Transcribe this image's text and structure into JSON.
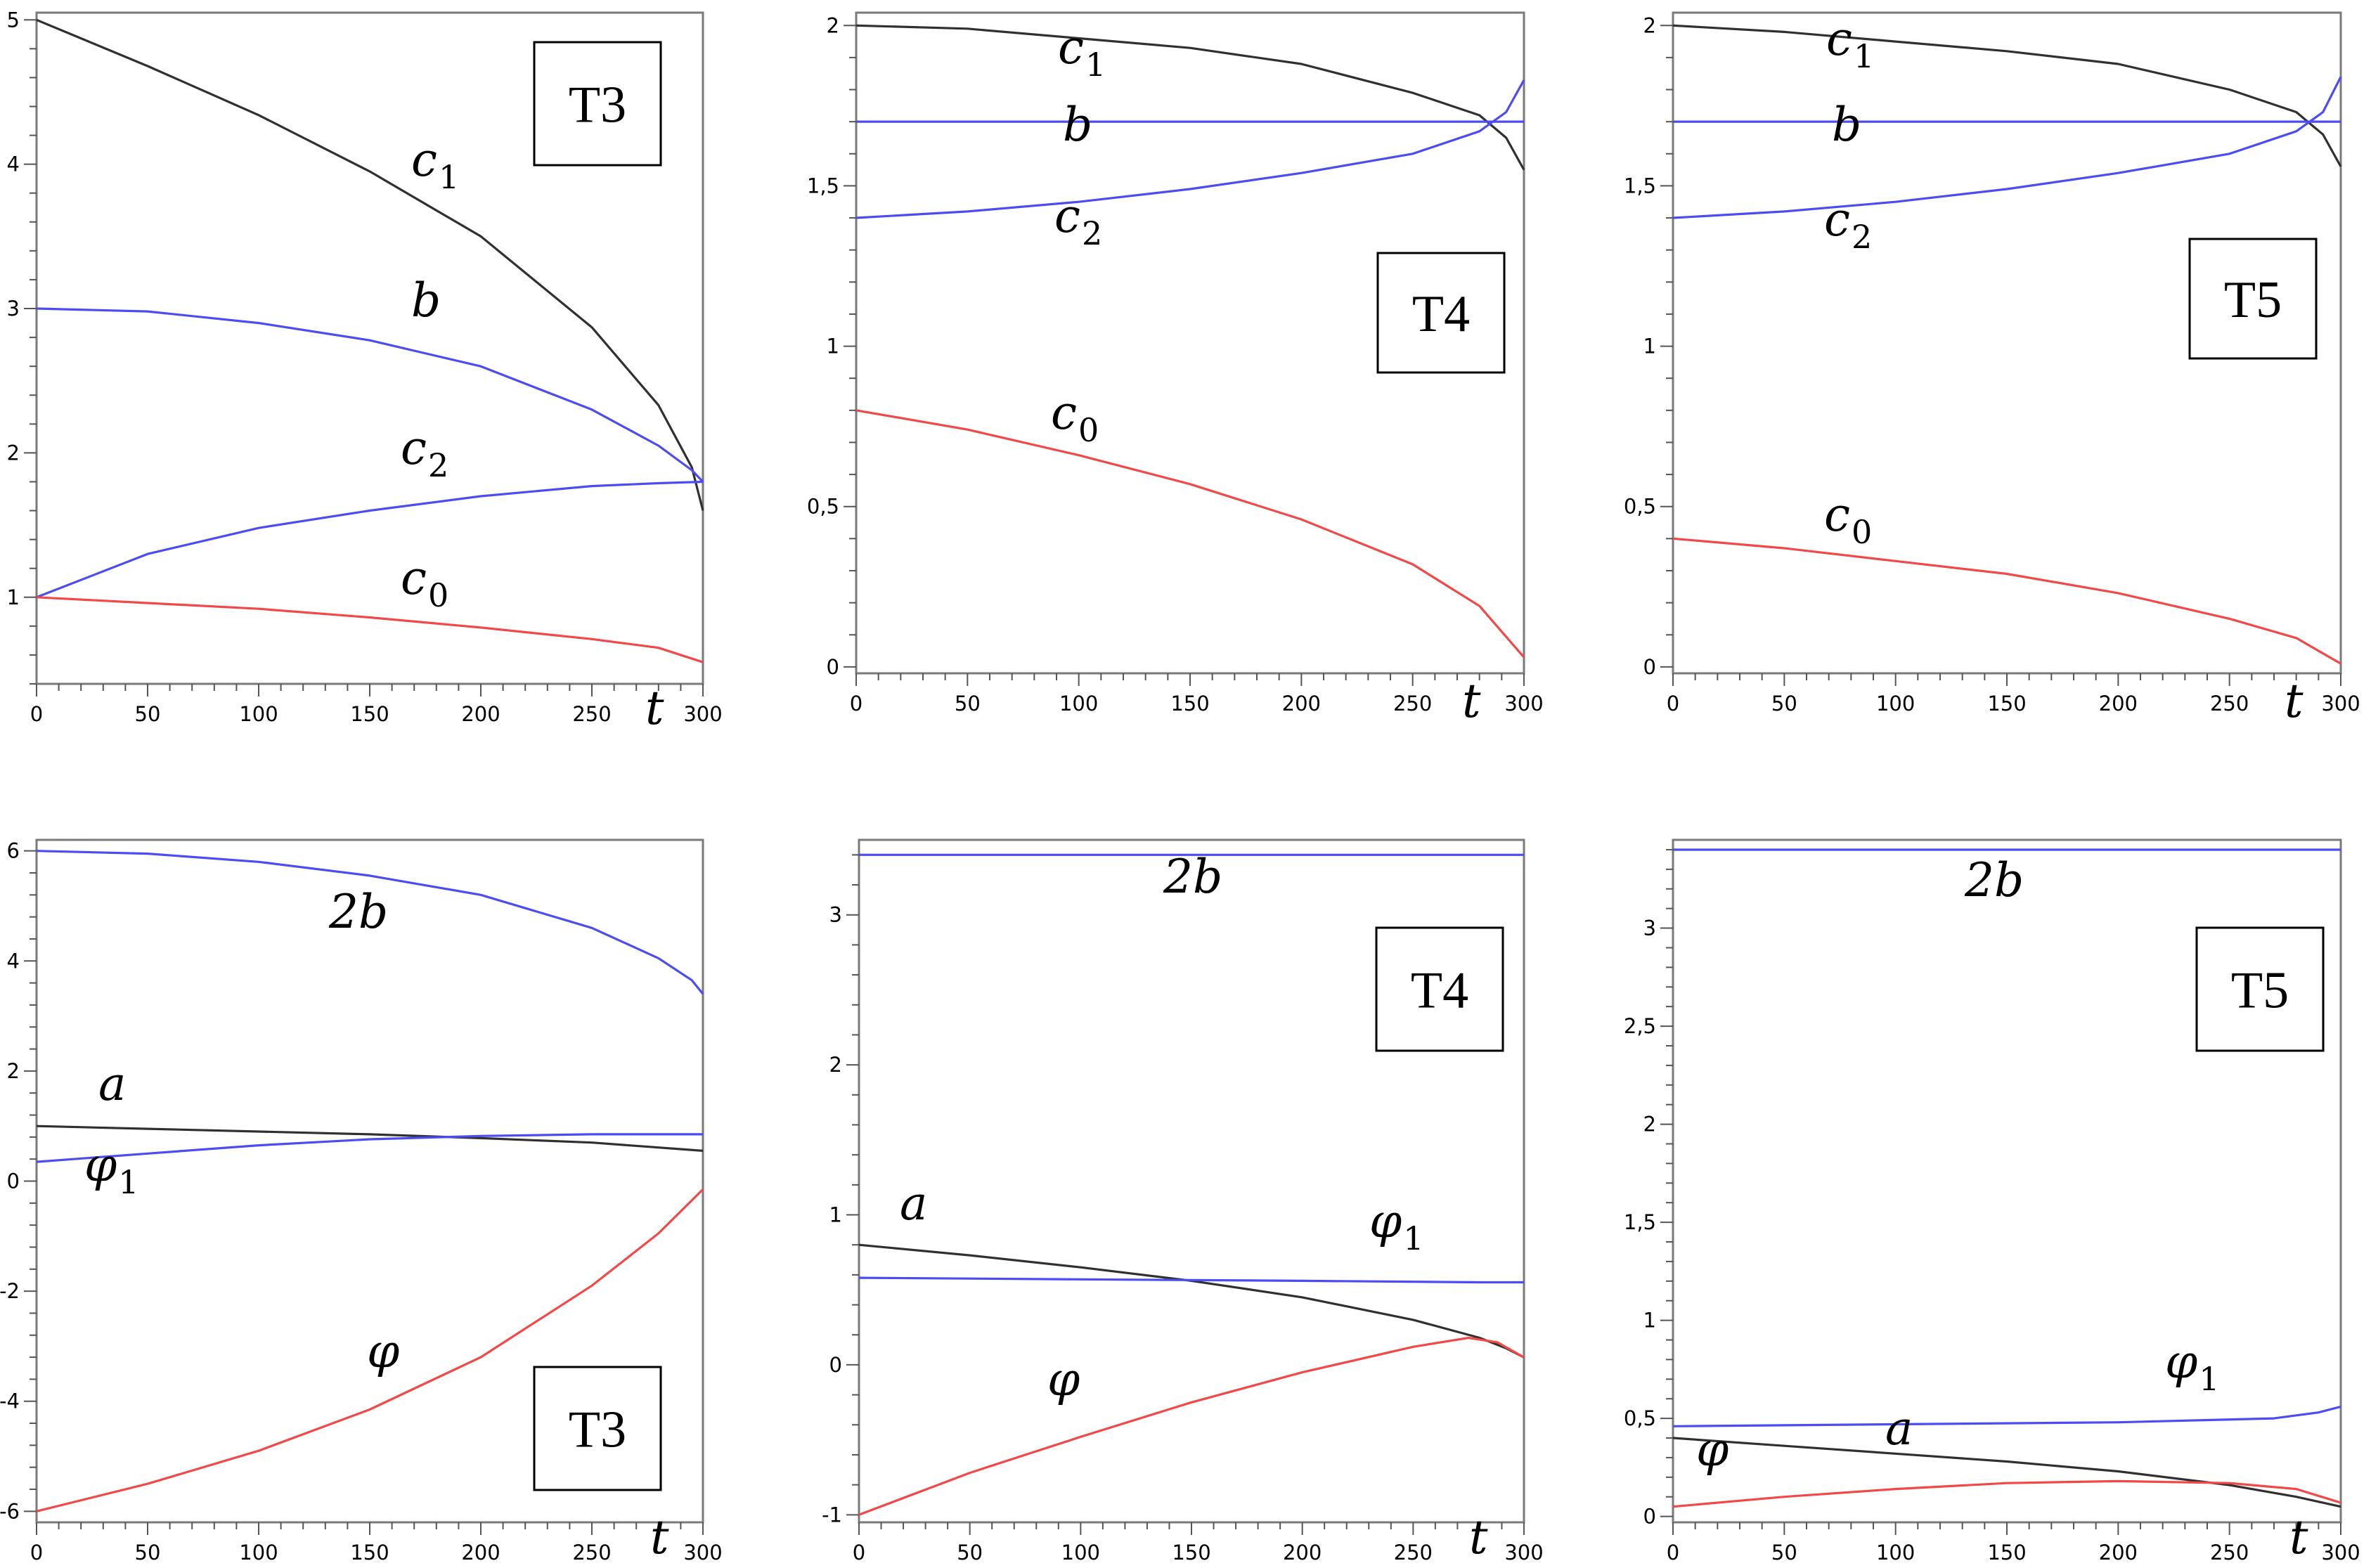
{
  "colors": {
    "black": "#303030",
    "blue": "#4c4cf2",
    "red": "#f24848"
  },
  "chart_data": [
    {
      "type": "line",
      "tag": "T3",
      "xlim": [
        0,
        300
      ],
      "ylim": [
        0.4,
        5.05
      ],
      "xticks": [
        "0",
        "50",
        "100",
        "150",
        "200",
        "250",
        "300"
      ],
      "xticks_v": [
        0,
        50,
        100,
        150,
        200,
        250,
        300
      ],
      "yticks": [
        "1",
        "2",
        "3",
        "4",
        "5"
      ],
      "yticks_v": [
        1,
        2,
        3,
        4,
        5
      ],
      "xlabel": "t",
      "series": [
        {
          "label": "c",
          "sub": "1",
          "color": "black",
          "x": [
            0,
            50,
            100,
            150,
            200,
            250,
            280,
            295,
            300
          ],
          "y": [
            5.0,
            4.68,
            4.34,
            3.95,
            3.5,
            2.87,
            2.33,
            1.9,
            1.6
          ]
        },
        {
          "label": "b",
          "sub": "",
          "color": "blue",
          "x": [
            0,
            50,
            100,
            150,
            200,
            250,
            280,
            295,
            300
          ],
          "y": [
            3.0,
            2.98,
            2.9,
            2.78,
            2.6,
            2.3,
            2.05,
            1.88,
            1.8
          ]
        },
        {
          "label": "c",
          "sub": "2",
          "color": "blue",
          "x": [
            0,
            50,
            100,
            150,
            200,
            250,
            280,
            300
          ],
          "y": [
            1.0,
            1.3,
            1.48,
            1.6,
            1.7,
            1.77,
            1.79,
            1.8
          ]
        },
        {
          "label": "c",
          "sub": "0",
          "color": "red",
          "x": [
            0,
            50,
            100,
            150,
            200,
            250,
            280,
            300
          ],
          "y": [
            1.0,
            0.96,
            0.92,
            0.86,
            0.79,
            0.71,
            0.65,
            0.55
          ]
        }
      ]
    },
    {
      "type": "line",
      "tag": "T4",
      "xlim": [
        0,
        300
      ],
      "ylim": [
        -0.02,
        2.04
      ],
      "xticks": [
        "0",
        "50",
        "100",
        "150",
        "200",
        "250",
        "300"
      ],
      "xticks_v": [
        0,
        50,
        100,
        150,
        200,
        250,
        300
      ],
      "yticks": [
        "0",
        "0,5",
        "1",
        "1,5",
        "2"
      ],
      "yticks_v": [
        0,
        0.5,
        1,
        1.5,
        2
      ],
      "xlabel": "t",
      "series": [
        {
          "label": "c",
          "sub": "1",
          "color": "black",
          "x": [
            0,
            50,
            100,
            150,
            200,
            250,
            280,
            292,
            300
          ],
          "y": [
            2.0,
            1.99,
            1.96,
            1.93,
            1.88,
            1.79,
            1.72,
            1.65,
            1.55
          ]
        },
        {
          "label": "b",
          "sub": "",
          "color": "blue",
          "x": [
            0,
            300
          ],
          "y": [
            1.7,
            1.7
          ]
        },
        {
          "label": "c",
          "sub": "2",
          "color": "blue",
          "x": [
            0,
            50,
            100,
            150,
            200,
            250,
            280,
            292,
            300
          ],
          "y": [
            1.4,
            1.42,
            1.45,
            1.49,
            1.54,
            1.6,
            1.67,
            1.73,
            1.83
          ]
        },
        {
          "label": "c",
          "sub": "0",
          "color": "red",
          "x": [
            0,
            50,
            100,
            150,
            200,
            250,
            280,
            300
          ],
          "y": [
            0.8,
            0.74,
            0.66,
            0.57,
            0.46,
            0.32,
            0.19,
            0.03
          ]
        }
      ]
    },
    {
      "type": "line",
      "tag": "T5",
      "xlim": [
        0,
        300
      ],
      "ylim": [
        -0.02,
        2.04
      ],
      "xticks": [
        "0",
        "50",
        "100",
        "150",
        "200",
        "250",
        "300"
      ],
      "xticks_v": [
        0,
        50,
        100,
        150,
        200,
        250,
        300
      ],
      "yticks": [
        "0",
        "0,5",
        "1",
        "1,5",
        "2"
      ],
      "yticks_v": [
        0,
        0.5,
        1,
        1.5,
        2
      ],
      "xlabel": "t",
      "series": [
        {
          "label": "c",
          "sub": "1",
          "color": "black",
          "x": [
            0,
            50,
            100,
            150,
            200,
            250,
            280,
            292,
            300
          ],
          "y": [
            2.0,
            1.98,
            1.95,
            1.92,
            1.88,
            1.8,
            1.73,
            1.66,
            1.56
          ]
        },
        {
          "label": "b",
          "sub": "",
          "color": "blue",
          "x": [
            0,
            300
          ],
          "y": [
            1.7,
            1.7
          ]
        },
        {
          "label": "c",
          "sub": "2",
          "color": "blue",
          "x": [
            0,
            50,
            100,
            150,
            200,
            250,
            280,
            292,
            300
          ],
          "y": [
            1.4,
            1.42,
            1.45,
            1.49,
            1.54,
            1.6,
            1.67,
            1.73,
            1.84
          ]
        },
        {
          "label": "c",
          "sub": "0",
          "color": "red",
          "x": [
            0,
            50,
            100,
            150,
            200,
            250,
            280,
            300
          ],
          "y": [
            0.4,
            0.37,
            0.33,
            0.29,
            0.23,
            0.15,
            0.09,
            0.01
          ]
        }
      ]
    },
    {
      "type": "line",
      "tag": "T3",
      "xlim": [
        0,
        300
      ],
      "ylim": [
        -6.2,
        6.2
      ],
      "xticks": [
        "0",
        "50",
        "100",
        "150",
        "200",
        "250",
        "300"
      ],
      "xticks_v": [
        0,
        50,
        100,
        150,
        200,
        250,
        300
      ],
      "yticks": [
        "-6",
        "-4",
        "-2",
        "0",
        "2",
        "4",
        "6"
      ],
      "yticks_v": [
        -6,
        -4,
        -2,
        0,
        2,
        4,
        6
      ],
      "xlabel": "t",
      "series": [
        {
          "label": "2b",
          "sub": "",
          "color": "blue",
          "x": [
            0,
            50,
            100,
            150,
            200,
            250,
            280,
            295,
            300
          ],
          "y": [
            6.0,
            5.95,
            5.8,
            5.55,
            5.2,
            4.6,
            4.05,
            3.65,
            3.4
          ]
        },
        {
          "label": "a",
          "sub": "",
          "color": "black",
          "x": [
            0,
            50,
            100,
            150,
            200,
            250,
            300
          ],
          "y": [
            1.0,
            0.95,
            0.9,
            0.85,
            0.78,
            0.7,
            0.55
          ]
        },
        {
          "label": "φ",
          "sub": "1",
          "color": "blue",
          "x": [
            0,
            50,
            100,
            150,
            200,
            250,
            300
          ],
          "y": [
            0.35,
            0.5,
            0.65,
            0.76,
            0.82,
            0.85,
            0.85
          ]
        },
        {
          "label": "φ",
          "sub": "",
          "color": "red",
          "x": [
            0,
            50,
            100,
            150,
            200,
            250,
            280,
            300
          ],
          "y": [
            -6.0,
            -5.5,
            -4.9,
            -4.15,
            -3.2,
            -1.9,
            -0.95,
            -0.15
          ]
        }
      ]
    },
    {
      "type": "line",
      "tag": "T4",
      "xlim": [
        0,
        300
      ],
      "ylim": [
        -1.05,
        3.5
      ],
      "xticks": [
        "0",
        "50",
        "100",
        "150",
        "200",
        "250",
        "300"
      ],
      "xticks_v": [
        0,
        50,
        100,
        150,
        200,
        250,
        300
      ],
      "yticks": [
        "-1",
        "0",
        "1",
        "2",
        "3"
      ],
      "yticks_v": [
        -1,
        0,
        1,
        2,
        3
      ],
      "xlabel": "t",
      "series": [
        {
          "label": "2b",
          "sub": "",
          "color": "blue",
          "x": [
            0,
            300
          ],
          "y": [
            3.4,
            3.4
          ]
        },
        {
          "label": "a",
          "sub": "",
          "color": "black",
          "x": [
            0,
            50,
            100,
            150,
            200,
            250,
            280,
            292,
            300
          ],
          "y": [
            0.8,
            0.73,
            0.65,
            0.56,
            0.45,
            0.3,
            0.18,
            0.11,
            0.05
          ]
        },
        {
          "label": "φ",
          "sub": "1",
          "color": "blue",
          "x": [
            0,
            100,
            200,
            280,
            300
          ],
          "y": [
            0.58,
            0.57,
            0.56,
            0.55,
            0.55
          ]
        },
        {
          "label": "φ",
          "sub": "",
          "color": "red",
          "x": [
            0,
            50,
            100,
            150,
            200,
            250,
            275,
            288,
            300
          ],
          "y": [
            -1.0,
            -0.72,
            -0.48,
            -0.25,
            -0.05,
            0.12,
            0.18,
            0.15,
            0.05
          ]
        }
      ]
    },
    {
      "type": "line",
      "tag": "T5",
      "xlim": [
        0,
        300
      ],
      "ylim": [
        -0.03,
        3.45
      ],
      "xticks": [
        "0",
        "50",
        "100",
        "150",
        "200",
        "250",
        "300"
      ],
      "xticks_v": [
        0,
        50,
        100,
        150,
        200,
        250,
        300
      ],
      "yticks": [
        "0",
        "0,5",
        "1",
        "1,5",
        "2",
        "2,5",
        "3"
      ],
      "yticks_v": [
        0,
        0.5,
        1,
        1.5,
        2,
        2.5,
        3
      ],
      "xlabel": "t",
      "series": [
        {
          "label": "2b",
          "sub": "",
          "color": "blue",
          "x": [
            0,
            300
          ],
          "y": [
            3.4,
            3.4
          ]
        },
        {
          "label": "φ",
          "sub": "1",
          "color": "blue",
          "x": [
            0,
            100,
            200,
            270,
            290,
            300
          ],
          "y": [
            0.46,
            0.47,
            0.48,
            0.5,
            0.53,
            0.56
          ]
        },
        {
          "label": "a",
          "sub": "",
          "color": "black",
          "x": [
            0,
            50,
            100,
            150,
            200,
            250,
            280,
            300
          ],
          "y": [
            0.4,
            0.36,
            0.32,
            0.28,
            0.23,
            0.16,
            0.1,
            0.05
          ]
        },
        {
          "label": "φ",
          "sub": "",
          "color": "red",
          "x": [
            0,
            50,
            100,
            150,
            200,
            250,
            280,
            300
          ],
          "y": [
            0.05,
            0.1,
            0.14,
            0.17,
            0.18,
            0.17,
            0.14,
            0.07
          ]
        }
      ]
    }
  ]
}
